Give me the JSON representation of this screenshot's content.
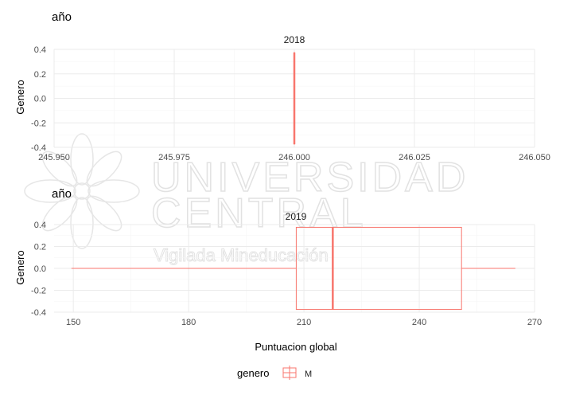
{
  "chart_data": [
    {
      "type": "boxplot",
      "facet_label": "2018",
      "title": "año",
      "xlabel": "",
      "ylabel": "Genero",
      "xlim": [
        245.95,
        246.05
      ],
      "ylim": [
        -0.4,
        0.4
      ],
      "xticks": [
        "245.950",
        "245.975",
        "246.000",
        "246.025",
        "246.050"
      ],
      "xtick_values": [
        245.95,
        245.975,
        246.0,
        246.025,
        246.05
      ],
      "yticks": [
        "0.4",
        "0.2",
        "0.0",
        "-0.2",
        "-0.4"
      ],
      "ytick_values": [
        0.4,
        0.2,
        0.0,
        -0.2,
        -0.4
      ],
      "series": [
        {
          "name": "M",
          "min": 246.0,
          "q1": 246.0,
          "median": 246.0,
          "q3": 246.0,
          "max": 246.0
        }
      ]
    },
    {
      "type": "boxplot",
      "facet_label": "2019",
      "title": "año",
      "xlabel": "Puntuacion global",
      "ylabel": "Genero",
      "xlim": [
        145,
        270
      ],
      "ylim": [
        -0.4,
        0.4
      ],
      "xticks": [
        "150",
        "180",
        "210",
        "240",
        "270"
      ],
      "xtick_values": [
        150,
        180,
        210,
        240,
        270
      ],
      "yticks": [
        "0.4",
        "0.2",
        "0.0",
        "-0.2",
        "-0.4"
      ],
      "ytick_values": [
        0.4,
        0.2,
        0.0,
        -0.2,
        -0.4
      ],
      "series": [
        {
          "name": "M",
          "min": 149.5,
          "q1": 208,
          "median": 217.5,
          "q3": 251,
          "max": 265
        }
      ]
    }
  ],
  "legend": {
    "title": "genero",
    "entries": [
      "M"
    ]
  },
  "colors": {
    "box": "#f8766d",
    "grid_major": "#ebebeb",
    "grid_minor": "#f5f5f5",
    "watermark": "#e6e6e6"
  },
  "watermark": {
    "line1": "UNIVERSIDAD",
    "line2": "CENTRAL",
    "line3": "Vigilada Mineducación"
  }
}
